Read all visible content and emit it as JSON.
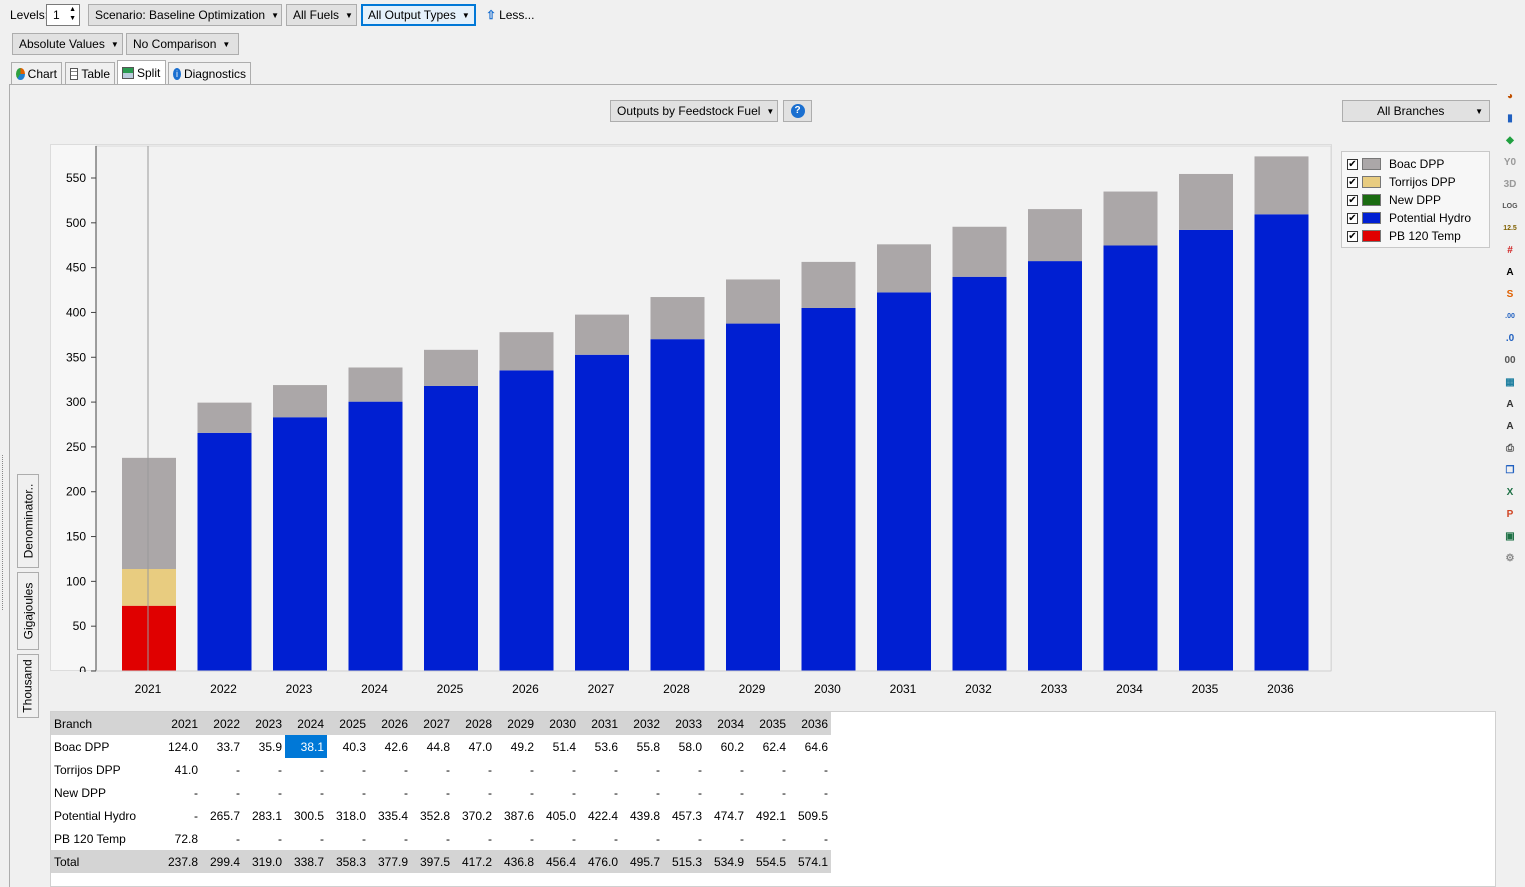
{
  "toolbar": {
    "levels_label": "Levels:",
    "levels_value": "1",
    "scenario": "Scenario: Baseline Optimization",
    "fuels": "All Fuels",
    "output_types": "All Output Types",
    "less": "Less...",
    "absolute_values": "Absolute Values",
    "comparison": "No Comparison"
  },
  "tabs": [
    {
      "label": "Chart",
      "icon": "chart-icon"
    },
    {
      "label": "Table",
      "icon": "table-icon"
    },
    {
      "label": "Split",
      "icon": "split-icon"
    },
    {
      "label": "Diagnostics",
      "icon": "diagnostics-icon"
    }
  ],
  "active_tab": "Split",
  "chart_controls": {
    "outputs_by": "Outputs by Feedstock Fuel",
    "help": "?",
    "branches": "All Branches"
  },
  "vertical_tabs": [
    "Denominator..",
    "Gigajoules",
    "Thousand"
  ],
  "chart_data": {
    "type": "bar",
    "stacked": true,
    "categories": [
      "2021",
      "2022",
      "2023",
      "2024",
      "2025",
      "2026",
      "2027",
      "2028",
      "2029",
      "2030",
      "2031",
      "2032",
      "2033",
      "2034",
      "2035",
      "2036"
    ],
    "series": [
      {
        "name": "PB 120 Temp",
        "color": "#e00000",
        "values": [
          72.8,
          0,
          0,
          0,
          0,
          0,
          0,
          0,
          0,
          0,
          0,
          0,
          0,
          0,
          0,
          0
        ]
      },
      {
        "name": "Torrijos DPP",
        "color": "#e8cc80",
        "values": [
          41.0,
          0,
          0,
          0,
          0,
          0,
          0,
          0,
          0,
          0,
          0,
          0,
          0,
          0,
          0,
          0
        ]
      },
      {
        "name": "New DPP",
        "color": "#1a6b10",
        "values": [
          0,
          0,
          0,
          0,
          0,
          0,
          0,
          0,
          0,
          0,
          0,
          0,
          0,
          0,
          0,
          0
        ]
      },
      {
        "name": "Potential Hydro",
        "color": "#001fd2",
        "values": [
          0,
          265.7,
          283.1,
          300.5,
          318.0,
          335.4,
          352.8,
          370.2,
          387.6,
          405.0,
          422.4,
          439.8,
          457.3,
          474.7,
          492.1,
          509.5
        ]
      },
      {
        "name": "Boac DPP",
        "color": "#aba7a8",
        "values": [
          124.0,
          33.7,
          35.9,
          38.1,
          40.3,
          42.6,
          44.8,
          47.0,
          49.2,
          51.4,
          53.6,
          55.8,
          58.0,
          60.2,
          62.4,
          64.6
        ]
      }
    ],
    "ylim": [
      0,
      580
    ],
    "yticks": [
      "0",
      "50",
      "100",
      "150",
      "200",
      "250",
      "300",
      "350",
      "400",
      "450",
      "500",
      "550"
    ],
    "legend_position": "top-right",
    "grid": false
  },
  "legend": [
    {
      "label": "Boac DPP",
      "color": "#aba7a8",
      "checked": true
    },
    {
      "label": "Torrijos DPP",
      "color": "#e8cc80",
      "checked": true
    },
    {
      "label": "New DPP",
      "color": "#1a6b10",
      "checked": true
    },
    {
      "label": "Potential Hydro",
      "color": "#001fd2",
      "checked": true
    },
    {
      "label": "PB 120 Temp",
      "color": "#e00000",
      "checked": true
    }
  ],
  "table": {
    "header": [
      "Branch",
      "2021",
      "2022",
      "2023",
      "2024",
      "2025",
      "2026",
      "2027",
      "2028",
      "2029",
      "2030",
      "2031",
      "2032",
      "2033",
      "2034",
      "2035",
      "2036"
    ],
    "rows": [
      [
        "Boac DPP",
        "124.0",
        "33.7",
        "35.9",
        "38.1",
        "40.3",
        "42.6",
        "44.8",
        "47.0",
        "49.2",
        "51.4",
        "53.6",
        "55.8",
        "58.0",
        "60.2",
        "62.4",
        "64.6"
      ],
      [
        "Torrijos DPP",
        "41.0",
        "-",
        "-",
        "-",
        "-",
        "-",
        "-",
        "-",
        "-",
        "-",
        "-",
        "-",
        "-",
        "-",
        "-",
        "-"
      ],
      [
        "New DPP",
        "-",
        "-",
        "-",
        "-",
        "-",
        "-",
        "-",
        "-",
        "-",
        "-",
        "-",
        "-",
        "-",
        "-",
        "-",
        "-"
      ],
      [
        "Potential Hydro",
        "-",
        "265.7",
        "283.1",
        "300.5",
        "318.0",
        "335.4",
        "352.8",
        "370.2",
        "387.6",
        "405.0",
        "422.4",
        "439.8",
        "457.3",
        "474.7",
        "492.1",
        "509.5"
      ],
      [
        "PB 120 Temp",
        "72.8",
        "-",
        "-",
        "-",
        "-",
        "-",
        "-",
        "-",
        "-",
        "-",
        "-",
        "-",
        "-",
        "-",
        "-",
        "-"
      ]
    ],
    "total": [
      "Total",
      "237.8",
      "299.4",
      "319.0",
      "338.7",
      "358.3",
      "377.9",
      "397.5",
      "417.2",
      "436.8",
      "456.4",
      "476.0",
      "495.7",
      "515.3",
      "534.9",
      "554.5",
      "574.1"
    ],
    "selected_cell": {
      "row": 0,
      "col": 4
    }
  },
  "right_toolbar_icons": [
    {
      "name": "chart-type-icon",
      "glyph": "◕",
      "color": "#c05000"
    },
    {
      "name": "bar-chart-icon",
      "glyph": "▮",
      "color": "#2060c0"
    },
    {
      "name": "area-chart-icon",
      "glyph": "◆",
      "color": "#20a040"
    },
    {
      "name": "y0-icon",
      "glyph": "Y0",
      "color": "#999"
    },
    {
      "name": "3d-icon",
      "glyph": "3D",
      "color": "#999"
    },
    {
      "name": "log-icon",
      "glyph": "LOG",
      "color": "#555"
    },
    {
      "name": "data-labels-icon",
      "glyph": "12.5",
      "color": "#806000"
    },
    {
      "name": "grid-icon",
      "glyph": "#",
      "color": "#d02020"
    },
    {
      "name": "font-icon",
      "glyph": "A",
      "color": "#000"
    },
    {
      "name": "stack-icon",
      "glyph": "S",
      "color": "#e06000"
    },
    {
      "name": "increase-decimals-icon",
      "glyph": ".00",
      "color": "#2060c0"
    },
    {
      "name": "decrease-decimals-icon",
      "glyph": ".0",
      "color": "#2060c0"
    },
    {
      "name": "scale-icon",
      "glyph": "00",
      "color": "#555"
    },
    {
      "name": "background-icon",
      "glyph": "▦",
      "color": "#2080a0"
    },
    {
      "name": "increase-font-icon",
      "glyph": "A",
      "color": "#333"
    },
    {
      "name": "decrease-font-icon",
      "glyph": "A",
      "color": "#333"
    },
    {
      "name": "print-icon",
      "glyph": "⎙",
      "color": "#555"
    },
    {
      "name": "copy-icon",
      "glyph": "❐",
      "color": "#2060c0"
    },
    {
      "name": "excel-icon",
      "glyph": "X",
      "color": "#1d7044"
    },
    {
      "name": "powerpoint-icon",
      "glyph": "P",
      "color": "#d04423"
    },
    {
      "name": "save-icon",
      "glyph": "▣",
      "color": "#1d7044"
    },
    {
      "name": "settings-wrench-icon",
      "glyph": "⚙",
      "color": "#888"
    }
  ]
}
